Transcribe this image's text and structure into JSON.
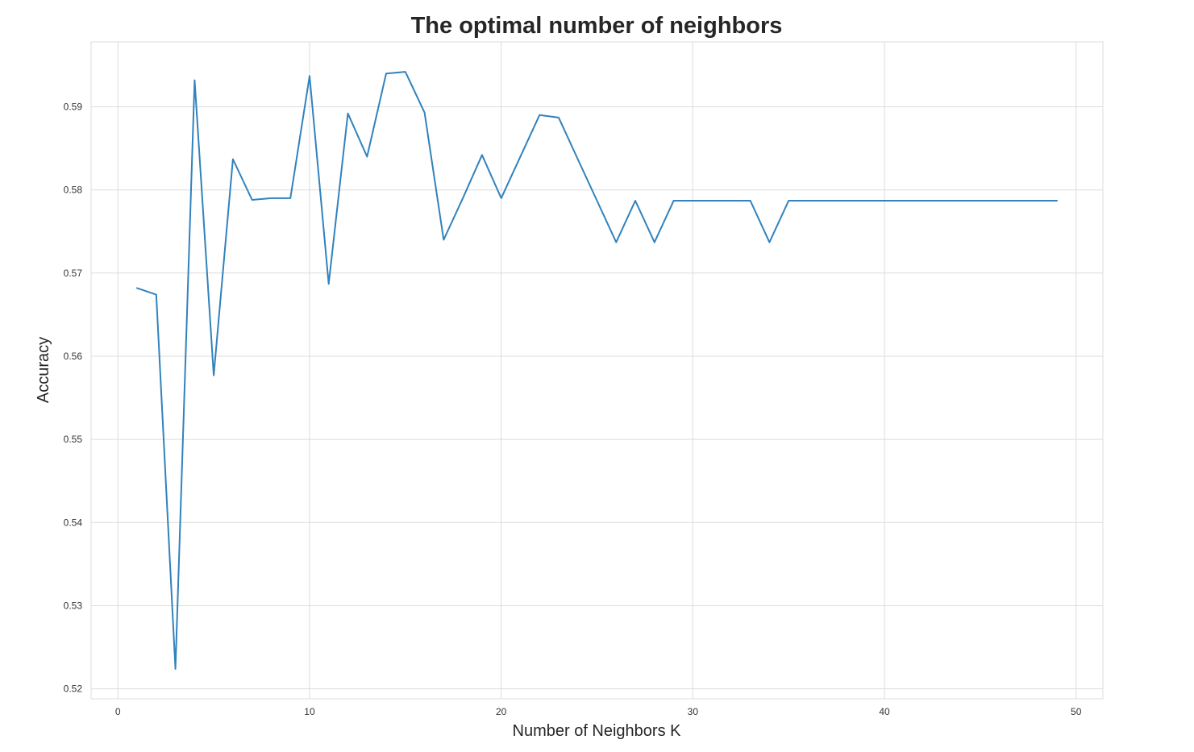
{
  "chart_data": {
    "type": "line",
    "title": "The optimal number of neighbors",
    "xlabel": "Number of Neighbors K",
    "ylabel": "Accuracy",
    "xlim": [
      -1.4,
      51.4
    ],
    "ylim": [
      0.5188,
      0.5978
    ],
    "xticks": [
      0,
      10,
      20,
      30,
      40,
      50
    ],
    "xtick_labels": [
      "0",
      "10",
      "20",
      "30",
      "40",
      "50"
    ],
    "yticks": [
      0.52,
      0.53,
      0.54,
      0.55,
      0.56,
      0.57,
      0.58,
      0.59
    ],
    "ytick_labels": [
      "0.52",
      "0.53",
      "0.54",
      "0.55",
      "0.56",
      "0.57",
      "0.58",
      "0.59"
    ],
    "grid": true,
    "colors": {
      "line": "#3182bd",
      "grid": "#dcdcdc",
      "background": "#ffffff"
    },
    "series": [
      {
        "x": [
          1,
          2,
          3,
          4,
          5,
          6,
          7,
          8,
          9,
          10,
          11,
          12,
          13,
          14,
          15,
          16,
          17,
          18,
          19,
          20,
          21,
          22,
          23,
          24,
          25,
          26,
          27,
          28,
          29,
          30,
          31,
          32,
          33,
          34,
          35,
          36,
          37,
          38,
          39,
          40,
          41,
          42,
          43,
          44,
          45,
          46,
          47,
          48,
          49
        ],
        "values": [
          0.5682,
          0.5674,
          0.5224,
          0.5932,
          0.5577,
          0.5837,
          0.5788,
          0.579,
          0.579,
          0.5937,
          0.5687,
          0.5892,
          0.584,
          0.594,
          0.5942,
          0.5893,
          0.574,
          0.579,
          0.5842,
          0.579,
          0.584,
          0.589,
          0.5887,
          0.5837,
          0.5787,
          0.5737,
          0.5787,
          0.5737,
          0.5787,
          0.5787,
          0.5787,
          0.5787,
          0.5787,
          0.5737,
          0.5787,
          0.5787,
          0.5787,
          0.5787,
          0.5787,
          0.5787,
          0.5787,
          0.5787,
          0.5787,
          0.5787,
          0.5787,
          0.5787,
          0.5787,
          0.5787,
          0.5787
        ]
      }
    ]
  }
}
